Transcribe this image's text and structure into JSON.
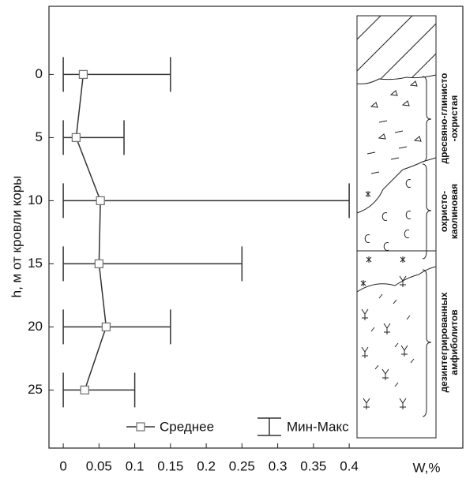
{
  "chart_data": {
    "type": "errorbar-line",
    "y_label": "h, м от кровли коры",
    "x_label": "W,%",
    "depth": [
      0,
      5,
      10,
      15,
      20,
      25
    ],
    "series": [
      {
        "name": "Среднее",
        "color": "#333333",
        "values": [
          0.028,
          0.018,
          0.052,
          0.05,
          0.06,
          0.03
        ]
      },
      {
        "name": "Мин-Макс",
        "color": "#333333",
        "min": [
          0,
          0,
          0,
          0,
          0,
          0
        ],
        "max": [
          0.15,
          0.085,
          0.4,
          0.25,
          0.15,
          0.1
        ]
      }
    ],
    "xlim": [
      -0.02,
      0.559
    ],
    "xticks": [
      0,
      0.05,
      0.1,
      0.15,
      0.2,
      0.25,
      0.3,
      0.35,
      0.4
    ],
    "ylim": [
      29.6,
      -5.4
    ],
    "yticks": [
      0,
      5,
      10,
      15,
      20,
      25
    ],
    "annotations": [
      {
        "lines": [
          "дресвяно-глинисто",
          "-охристая"
        ]
      },
      {
        "lines": [
          "охристо-",
          "каолиновая"
        ]
      },
      {
        "lines": [
          "дезинтегрированных",
          "амфиболитов"
        ]
      }
    ]
  }
}
